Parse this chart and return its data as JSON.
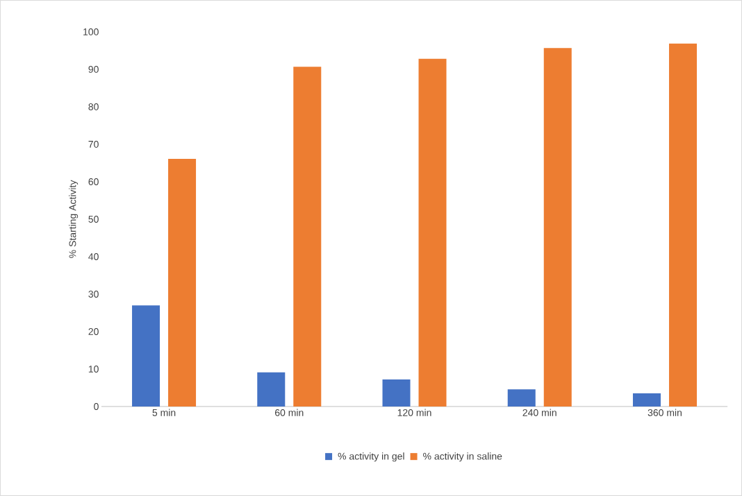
{
  "chart_data": {
    "type": "bar",
    "ylabel": "% Starting Activity",
    "categories": [
      "5 min",
      "60 min",
      "120 min",
      "240 min",
      "360 min"
    ],
    "series": [
      {
        "name": "% activity in gel",
        "color": "#4472c4",
        "values": [
          27.0,
          9.1,
          7.2,
          4.6,
          3.5
        ]
      },
      {
        "name": "% activity in saline",
        "color": "#ed7d31",
        "values": [
          66.1,
          90.7,
          92.8,
          95.7,
          96.9
        ]
      }
    ],
    "ylim": [
      0,
      100
    ],
    "yticks": [
      0,
      10,
      20,
      30,
      40,
      50,
      60,
      70,
      80,
      90,
      100
    ],
    "legend": "bottom"
  }
}
